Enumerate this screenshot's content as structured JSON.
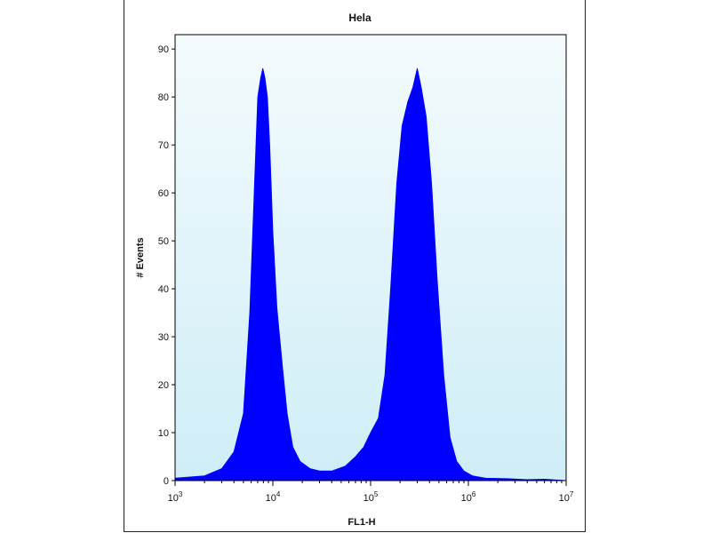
{
  "chart_data": {
    "type": "area",
    "title": "Hela",
    "xlabel": "FL1-H",
    "ylabel": "# Events",
    "x_scale": "log",
    "xlim": [
      1000,
      10000000
    ],
    "ylim": [
      0,
      93
    ],
    "x_ticks": [
      {
        "value": 1000,
        "base": "10",
        "exp": "3"
      },
      {
        "value": 10000,
        "base": "10",
        "exp": "4"
      },
      {
        "value": 100000,
        "base": "10",
        "exp": "5"
      },
      {
        "value": 1000000,
        "base": "10",
        "exp": "6"
      },
      {
        "value": 10000000,
        "base": "10",
        "exp": "7"
      }
    ],
    "y_ticks": [
      "0",
      "10",
      "20",
      "30",
      "40",
      "50",
      "60",
      "70",
      "80",
      "90"
    ],
    "grid": false,
    "colors": {
      "fill": "#0000ff",
      "plot_bg_top": "#f4fbfd",
      "plot_bg_bottom": "#cfeef7",
      "frame": "#000000"
    },
    "series": [
      {
        "x": [
          1000,
          2000,
          3000,
          4000,
          5000,
          5800,
          6500,
          7000,
          7500,
          7900,
          8300,
          8800,
          9300,
          10000,
          11000,
          12500,
          14000,
          16000,
          19000,
          24000,
          30000,
          40000,
          55000,
          70000,
          85000,
          100000,
          120000,
          140000,
          160000,
          185000,
          210000,
          240000,
          270000,
          300000,
          330000,
          370000,
          420000,
          480000,
          560000,
          650000,
          760000,
          900000,
          1100000,
          1500000,
          2500000,
          4000000,
          6000000,
          10000000
        ],
        "y": [
          0.5,
          1,
          2.5,
          6,
          14,
          35,
          62,
          80,
          84,
          86,
          84,
          80,
          70,
          52,
          36,
          24,
          14,
          7,
          4,
          2.5,
          2,
          2,
          3,
          5,
          7,
          10,
          13,
          22,
          40,
          62,
          74,
          79,
          82,
          86,
          82,
          76,
          62,
          42,
          22,
          9,
          4,
          2,
          1,
          0.5,
          0.4,
          0.2,
          0.3,
          0
        ]
      }
    ]
  }
}
